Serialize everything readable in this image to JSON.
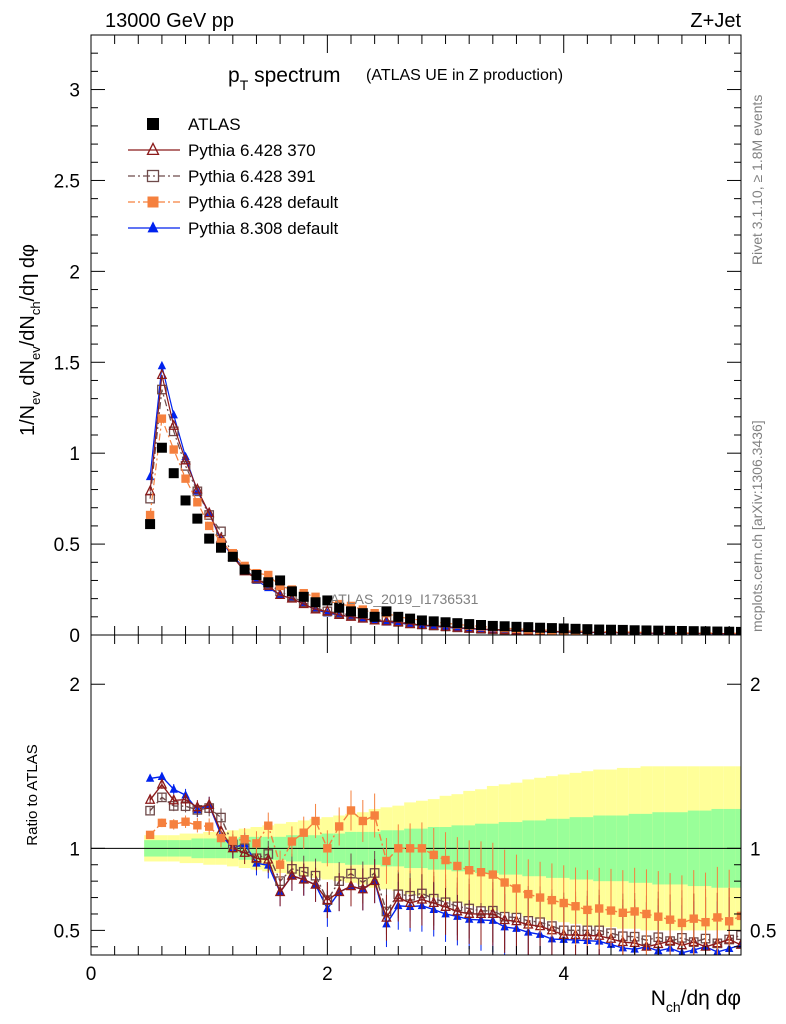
{
  "header": {
    "left": "13000 GeV pp",
    "right": "Z+Jet"
  },
  "side_labels": {
    "rivet": "Rivet 3.1.10, ≥ 1.8M events",
    "mcplots": "mcplots.cern.ch [arXiv:1306.3436]"
  },
  "watermark": "ATLAS_2019_I1736531",
  "chart_data": [
    {
      "type": "scatter",
      "title": "p_T spectrum",
      "title_main": "p",
      "title_sub": "T",
      "title_rest": " spectrum",
      "title_note": "(ATLAS UE in Z production)",
      "ylabel": "1/N_ev dN_ev/dN_ch/dη dφ",
      "xlim": [
        0,
        5.5
      ],
      "ylim": [
        0,
        3.3
      ],
      "yticks": [
        "0",
        "0.5",
        "1",
        "1.5",
        "2",
        "2.5",
        "3"
      ],
      "legend_position": "top-left",
      "x": [
        0.5,
        0.6,
        0.7,
        0.8,
        0.9,
        1.0,
        1.1,
        1.2,
        1.3,
        1.4,
        1.5,
        1.6,
        1.7,
        1.8,
        1.9,
        2.0,
        2.1,
        2.2,
        2.3,
        2.4,
        2.5,
        2.6,
        2.7,
        2.8,
        2.9,
        3.0,
        3.1,
        3.2,
        3.3,
        3.4,
        3.5,
        3.6,
        3.7,
        3.8,
        3.9,
        4.0,
        4.1,
        4.2,
        4.3,
        4.4,
        4.5,
        4.6,
        4.7,
        4.8,
        4.9,
        5.0,
        5.1,
        5.2,
        5.3,
        5.4,
        5.5
      ],
      "series": [
        {
          "name": "ATLAS",
          "color": "#000000",
          "marker": "square",
          "line": "none",
          "values": [
            0.61,
            1.03,
            0.89,
            0.74,
            0.64,
            0.53,
            0.48,
            0.43,
            0.36,
            0.33,
            0.29,
            0.3,
            0.24,
            0.21,
            0.18,
            0.19,
            0.15,
            0.13,
            0.12,
            0.1,
            0.13,
            0.1,
            0.09,
            0.08,
            0.075,
            0.07,
            0.065,
            0.06,
            0.055,
            0.05,
            0.048,
            0.045,
            0.043,
            0.04,
            0.038,
            0.036,
            0.034,
            0.032,
            0.03,
            0.029,
            0.028,
            0.026,
            0.025,
            0.024,
            0.023,
            0.022,
            0.021,
            0.02,
            0.019,
            0.018,
            0.017
          ]
        },
        {
          "name": "Pythia 6.428 370",
          "color": "#8b1a1a",
          "marker": "triangle-open",
          "line": "solid",
          "values": [
            0.79,
            1.43,
            1.15,
            0.96,
            0.8,
            0.67,
            0.53,
            0.43,
            0.35,
            0.31,
            0.27,
            0.22,
            0.2,
            0.17,
            0.14,
            0.13,
            0.11,
            0.1,
            0.09,
            0.08,
            0.075,
            0.07,
            0.06,
            0.055,
            0.05,
            0.045,
            0.04,
            0.036,
            0.033,
            0.03,
            0.027,
            0.025,
            0.023,
            0.021,
            0.019,
            0.017,
            0.016,
            0.015,
            0.014,
            0.013,
            0.012,
            0.011,
            0.01,
            0.01,
            0.01,
            0.009,
            0.009,
            0.008,
            0.008,
            0.008,
            0.007
          ]
        },
        {
          "name": "Pythia 6.428 391",
          "color": "#6e4a4a",
          "marker": "square-open",
          "line": "dashdot",
          "values": [
            0.75,
            1.35,
            1.12,
            0.93,
            0.79,
            0.66,
            0.57,
            0.44,
            0.36,
            0.31,
            0.28,
            0.24,
            0.21,
            0.18,
            0.15,
            0.13,
            0.12,
            0.11,
            0.095,
            0.085,
            0.08,
            0.072,
            0.064,
            0.058,
            0.052,
            0.047,
            0.042,
            0.038,
            0.034,
            0.031,
            0.028,
            0.026,
            0.024,
            0.022,
            0.02,
            0.018,
            0.017,
            0.016,
            0.015,
            0.014,
            0.013,
            0.012,
            0.011,
            0.011,
            0.01,
            0.01,
            0.009,
            0.009,
            0.008,
            0.008,
            0.008
          ]
        },
        {
          "name": "Pythia 6.428 default",
          "color": "#f5803e",
          "marker": "square",
          "line": "dashdot",
          "values": [
            0.66,
            1.19,
            1.02,
            0.86,
            0.73,
            0.6,
            0.51,
            0.45,
            0.38,
            0.34,
            0.33,
            0.27,
            0.25,
            0.23,
            0.21,
            0.19,
            0.17,
            0.16,
            0.14,
            0.12,
            0.12,
            0.1,
            0.09,
            0.08,
            0.072,
            0.065,
            0.058,
            0.052,
            0.047,
            0.042,
            0.038,
            0.034,
            0.031,
            0.028,
            0.026,
            0.024,
            0.022,
            0.02,
            0.019,
            0.018,
            0.017,
            0.016,
            0.015,
            0.014,
            0.013,
            0.012,
            0.012,
            0.011,
            0.011,
            0.01,
            0.01
          ]
        },
        {
          "name": "Pythia 8.308 default",
          "color": "#0022ee",
          "marker": "triangle",
          "line": "solid",
          "values": [
            0.87,
            1.48,
            1.21,
            0.98,
            0.79,
            0.67,
            0.52,
            0.43,
            0.37,
            0.3,
            0.26,
            0.22,
            0.2,
            0.17,
            0.14,
            0.12,
            0.11,
            0.1,
            0.09,
            0.08,
            0.07,
            0.065,
            0.058,
            0.052,
            0.047,
            0.042,
            0.038,
            0.034,
            0.031,
            0.028,
            0.025,
            0.023,
            0.021,
            0.019,
            0.017,
            0.016,
            0.015,
            0.014,
            0.013,
            0.012,
            0.011,
            0.01,
            0.01,
            0.009,
            0.009,
            0.008,
            0.008,
            0.008,
            0.007,
            0.007,
            0.007
          ]
        }
      ]
    },
    {
      "type": "scatter",
      "ylabel": "Ratio to ATLAS",
      "xlabel": "N_ch/dη dφ",
      "xlabel_main": "N",
      "xlabel_sub": "ch",
      "xlabel_rest": "/dη dφ",
      "xlim": [
        0,
        5.5
      ],
      "ylim": [
        0.35,
        2.3
      ],
      "xticks": [
        "0",
        "2",
        "4"
      ],
      "yticks": [
        "0.5",
        "1",
        "2"
      ],
      "reference_line": 1,
      "band_stat_halfwidth": [
        0.05,
        0.05,
        0.05,
        0.05,
        0.06,
        0.06,
        0.06,
        0.06,
        0.07,
        0.07,
        0.07,
        0.07,
        0.08,
        0.08,
        0.08,
        0.09,
        0.09,
        0.1,
        0.1,
        0.1,
        0.11,
        0.11,
        0.12,
        0.12,
        0.13,
        0.13,
        0.14,
        0.14,
        0.15,
        0.15,
        0.16,
        0.16,
        0.17,
        0.17,
        0.18,
        0.18,
        0.19,
        0.19,
        0.2,
        0.2,
        0.2,
        0.21,
        0.21,
        0.22,
        0.22,
        0.22,
        0.23,
        0.23,
        0.24,
        0.24,
        0.24
      ],
      "band_total_halfwidth": [
        0.08,
        0.08,
        0.08,
        0.09,
        0.09,
        0.1,
        0.1,
        0.11,
        0.12,
        0.13,
        0.14,
        0.15,
        0.16,
        0.17,
        0.18,
        0.19,
        0.2,
        0.21,
        0.22,
        0.24,
        0.25,
        0.26,
        0.28,
        0.29,
        0.3,
        0.32,
        0.33,
        0.35,
        0.36,
        0.38,
        0.39,
        0.4,
        0.42,
        0.43,
        0.44,
        0.45,
        0.46,
        0.47,
        0.48,
        0.48,
        0.49,
        0.49,
        0.5,
        0.5,
        0.5,
        0.5,
        0.5,
        0.5,
        0.5,
        0.5,
        0.5
      ]
    }
  ]
}
